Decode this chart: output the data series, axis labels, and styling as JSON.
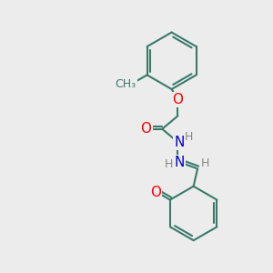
{
  "bg_color": "#ececec",
  "bond_color": "#3a7a6a",
  "atom_colors": {
    "O": "#ff0000",
    "N": "#0000cc",
    "H": "#888888",
    "C": "#3a7a6a"
  },
  "line_width": 1.5,
  "font_size_atom": 11,
  "font_size_H": 9,
  "font_size_CH3": 9
}
